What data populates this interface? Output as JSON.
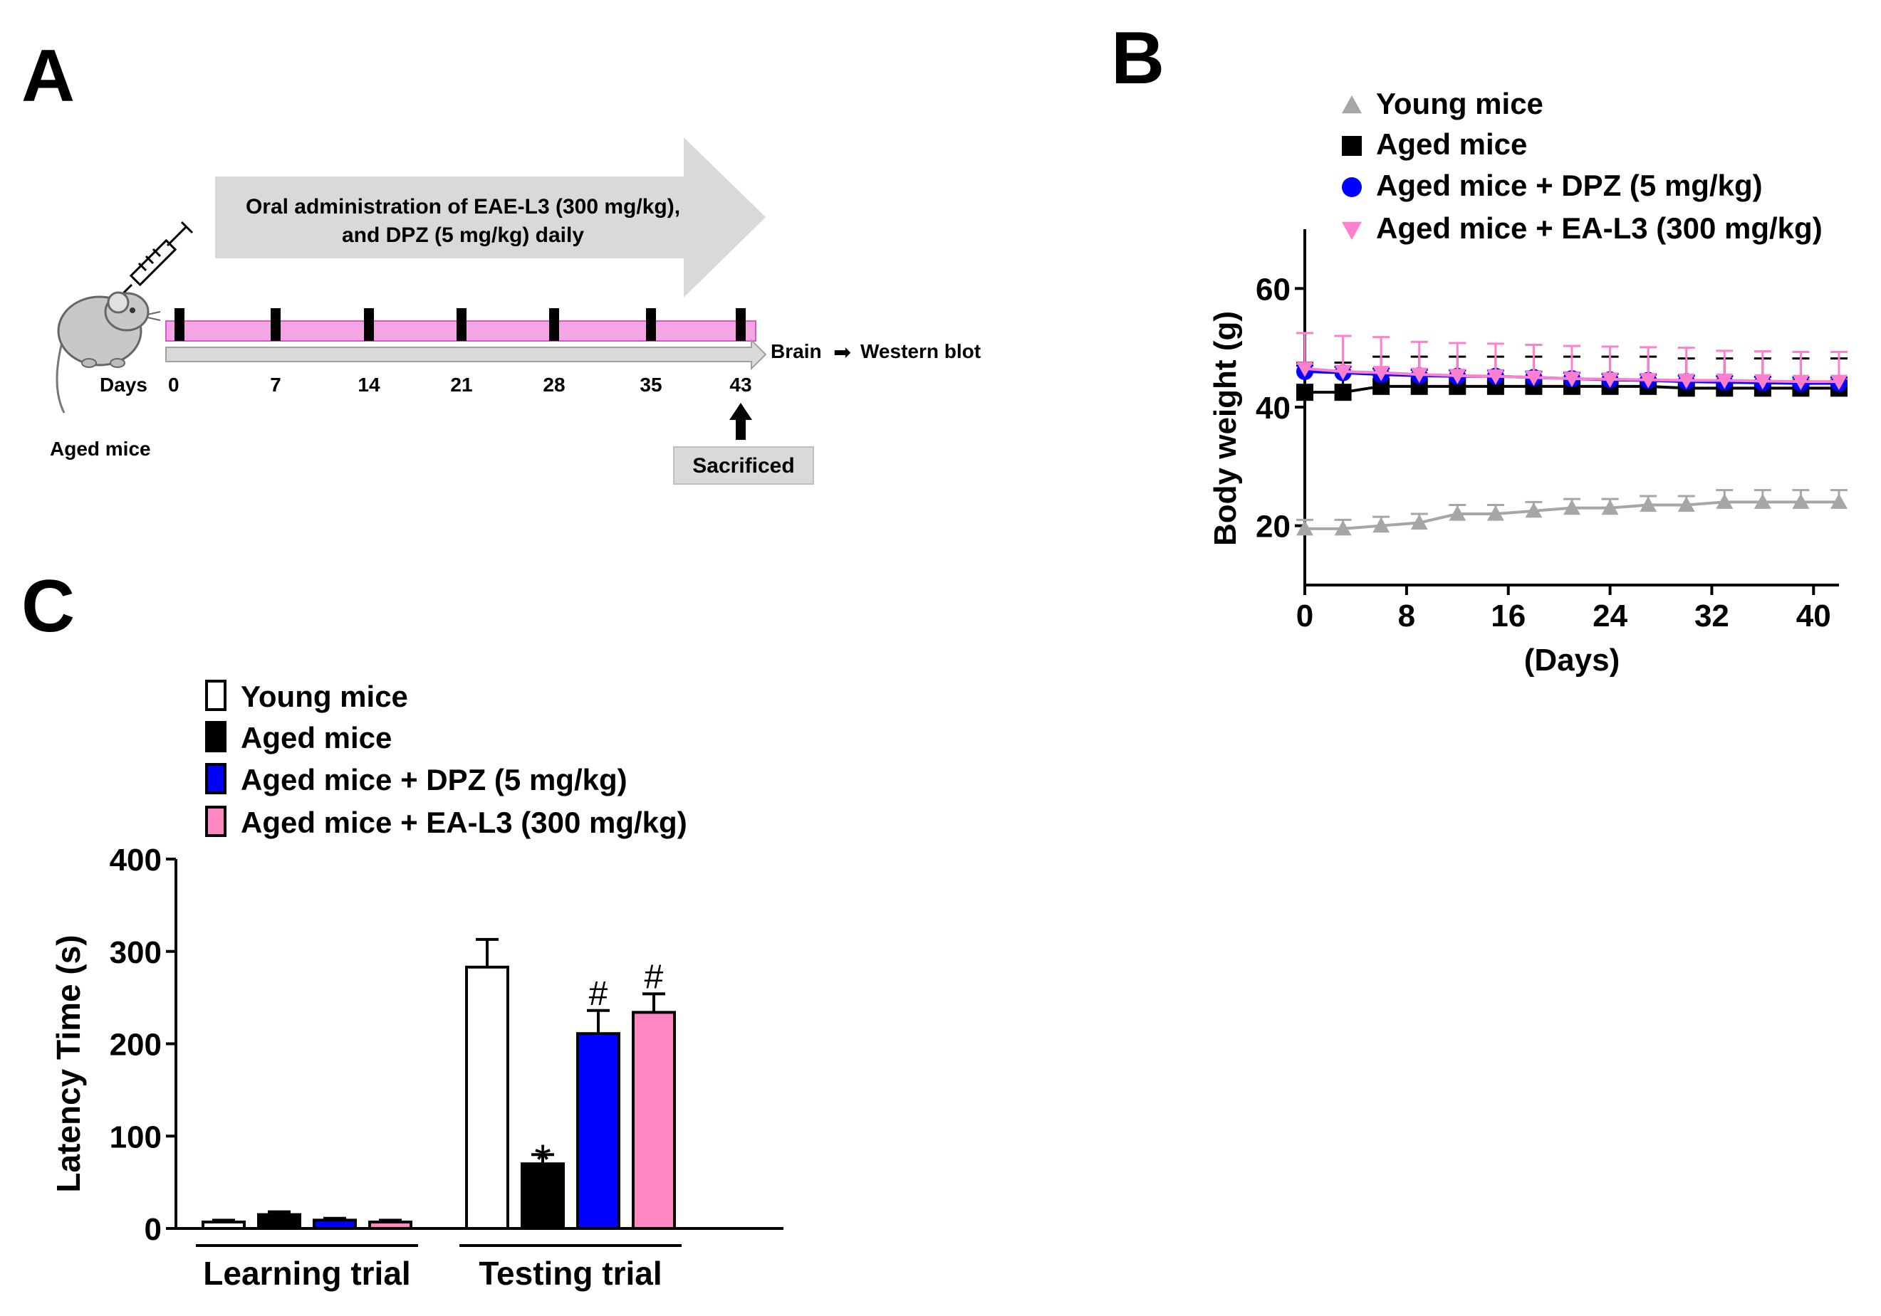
{
  "panels": {
    "a": {
      "letter": "A",
      "arrow_text_line1": "Oral administration of EAE-L3 (300 mg/kg),",
      "arrow_text_line2": "and DPZ (5 mg/kg) daily",
      "days_label": "Days",
      "day_ticks": [
        "0",
        "7",
        "14",
        "21",
        "28",
        "35",
        "43"
      ],
      "endpoint_brain": "Brain",
      "endpoint_arrow": "➡",
      "endpoint_western": "Western blot",
      "mouse_label": "Aged mice",
      "sacrificed_label": "Sacrificed",
      "colors": {
        "arrow_fill": "#d9d9d9",
        "band_pink": "#f4a6e4",
        "band_pink_edge": "#d45ac4",
        "tick_mark": "#000000"
      }
    },
    "b": {
      "letter": "B"
    },
    "c": {
      "letter": "C"
    }
  },
  "chart_data": [
    {
      "type": "line",
      "panel": "B",
      "title": "",
      "xlabel": "(Days)",
      "ylabel": "Body weight (g)",
      "x_ticks": [
        0,
        8,
        16,
        24,
        32,
        40
      ],
      "y_ticks": [
        20,
        40,
        60
      ],
      "xlim": [
        0,
        42
      ],
      "ylim": [
        10,
        70
      ],
      "legend_position": "top",
      "x": [
        0,
        3,
        6,
        9,
        12,
        15,
        18,
        21,
        24,
        27,
        30,
        33,
        36,
        39,
        42
      ],
      "series": [
        {
          "name": "Young mice",
          "color": "#a6a6a6",
          "marker": "triangle-up",
          "values": [
            19.5,
            19.5,
            20,
            20.5,
            22,
            22,
            22.5,
            23,
            23,
            23.5,
            23.5,
            24,
            24,
            24,
            24
          ],
          "error": [
            1.5,
            1.5,
            1.5,
            1.5,
            1.5,
            1.5,
            1.5,
            1.5,
            1.5,
            1.5,
            1.5,
            2,
            2,
            2,
            2
          ]
        },
        {
          "name": "Aged mice",
          "color": "#000000",
          "marker": "square",
          "values": [
            42.5,
            42.5,
            43.5,
            43.5,
            43.5,
            43.5,
            43.5,
            43.5,
            43.5,
            43.5,
            43.2,
            43.2,
            43.2,
            43.2,
            43.2
          ],
          "error": [
            5,
            5,
            5,
            5,
            5,
            5,
            5,
            5,
            5,
            5,
            5,
            5,
            5,
            5,
            5
          ]
        },
        {
          "name": "Aged mice + DPZ (5 mg/kg)",
          "color": "#0000ff",
          "marker": "circle",
          "values": [
            46,
            45.8,
            45.5,
            45.3,
            45.2,
            45.2,
            45,
            44.8,
            44.6,
            44.5,
            44.3,
            44.2,
            44.1,
            44,
            44
          ],
          "error": [
            1,
            1,
            1,
            1,
            1,
            1,
            1,
            1,
            1,
            1,
            1,
            1,
            1,
            1,
            1
          ]
        },
        {
          "name": "Aged mice + EA-L3 (300 mg/kg)",
          "color": "#ff7fcf",
          "marker": "triangle-down",
          "values": [
            46.5,
            46,
            45.8,
            45.5,
            45.3,
            45.2,
            45,
            44.8,
            44.7,
            44.6,
            44.5,
            44.5,
            44.4,
            44.3,
            44.3
          ],
          "error": [
            6,
            6,
            6,
            5.5,
            5.5,
            5.5,
            5.5,
            5.5,
            5.5,
            5.5,
            5.5,
            5,
            5,
            5,
            5
          ]
        }
      ]
    },
    {
      "type": "bar",
      "panel": "C",
      "title": "",
      "xlabel": "",
      "ylabel": "Latency Time (s)",
      "y_ticks": [
        0,
        100,
        200,
        300,
        400
      ],
      "ylim": [
        0,
        400
      ],
      "legend_position": "top",
      "categories": [
        "Learning trial",
        "Testing trial"
      ],
      "series": [
        {
          "name": "Young mice",
          "color": "#ffffff",
          "values": [
            7,
            283
          ],
          "error": [
            2,
            30
          ],
          "annotation": [
            "",
            ""
          ]
        },
        {
          "name": "Aged mice",
          "color": "#000000",
          "values": [
            15,
            70
          ],
          "error": [
            3,
            10
          ],
          "annotation": [
            "",
            "*"
          ]
        },
        {
          "name": "Aged mice + DPZ (5 mg/kg)",
          "color": "#0000ff",
          "values": [
            9,
            211
          ],
          "error": [
            2,
            25
          ],
          "annotation": [
            "",
            "#"
          ]
        },
        {
          "name": "Aged mice + EA-L3 (300 mg/kg)",
          "color": "#ff88c2",
          "values": [
            7,
            234
          ],
          "error": [
            2,
            20
          ],
          "annotation": [
            "",
            "#"
          ]
        }
      ]
    }
  ]
}
